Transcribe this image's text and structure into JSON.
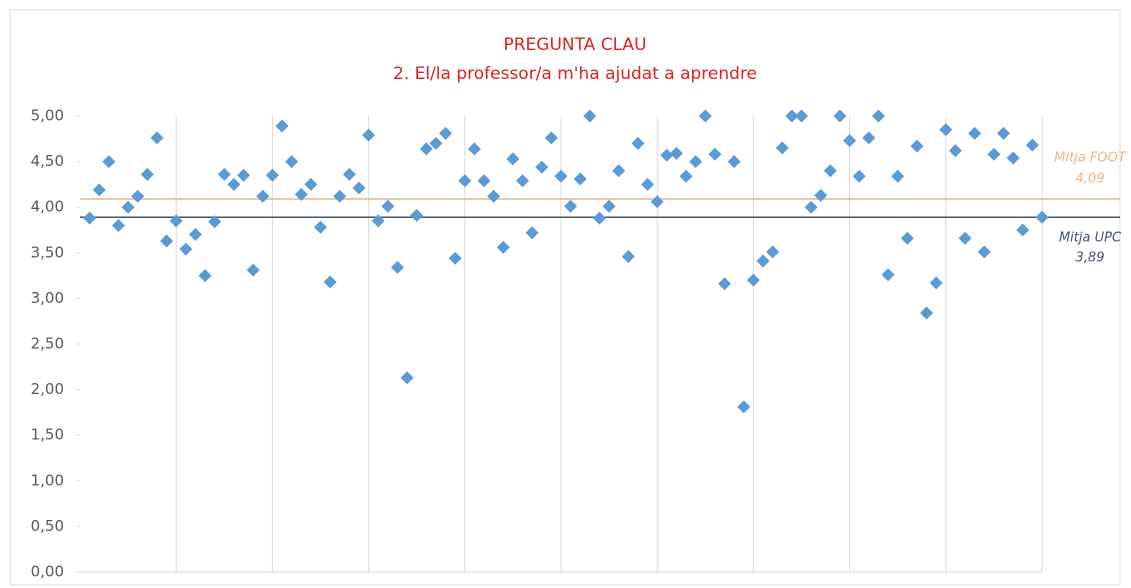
{
  "chart_data": {
    "type": "scatter",
    "title": "PREGUNTA CLAU",
    "subtitle": "2. El/la professor/a m'ha ajudat a aprendre",
    "color": "#5b9bd5",
    "marker": "diamond",
    "grid": true,
    "values": [
      3.88,
      4.19,
      4.5,
      3.8,
      4.0,
      4.12,
      4.36,
      4.76,
      3.63,
      3.85,
      3.54,
      3.7,
      3.25,
      3.84,
      4.36,
      4.25,
      4.35,
      3.31,
      4.12,
      4.35,
      4.89,
      4.5,
      4.14,
      4.25,
      3.78,
      3.18,
      4.12,
      4.36,
      4.21,
      4.79,
      3.85,
      4.01,
      3.34,
      2.13,
      3.91,
      4.64,
      4.7,
      4.81,
      3.44,
      4.29,
      4.64,
      4.29,
      4.12,
      3.56,
      4.53,
      4.29,
      3.72,
      4.44,
      4.76,
      4.34,
      4.01,
      4.31,
      5.0,
      3.88,
      4.01,
      4.4,
      3.46,
      4.7,
      4.25,
      4.06,
      4.57,
      4.59,
      4.34,
      4.5,
      5.0,
      4.58,
      3.16,
      4.5,
      1.81,
      3.2,
      3.41,
      3.51,
      4.65,
      5.0,
      5.0,
      4.0,
      4.13,
      4.4,
      5.0,
      4.73,
      4.34,
      4.76,
      5.0,
      3.26,
      4.34,
      3.66,
      4.67,
      2.84,
      3.17,
      4.85,
      4.62,
      3.66,
      4.81,
      3.51,
      4.58,
      4.81,
      4.54,
      3.75,
      4.68,
      3.89
    ],
    "ylim": [
      0,
      5
    ],
    "yticks": [
      {
        "value": 0,
        "label": "0,00"
      },
      {
        "value": 0.5,
        "label": "0,50"
      },
      {
        "value": 1,
        "label": "1,00"
      },
      {
        "value": 1.5,
        "label": "1,50"
      },
      {
        "value": 2,
        "label": "2,00"
      },
      {
        "value": 2.5,
        "label": "2,50"
      },
      {
        "value": 3,
        "label": "3,00"
      },
      {
        "value": 3.5,
        "label": "3,50"
      },
      {
        "value": 4,
        "label": "4,00"
      },
      {
        "value": 4.5,
        "label": "4,50"
      },
      {
        "value": 5,
        "label": "5,00"
      }
    ],
    "reference_lines": [
      {
        "name": "Mitja FOOT",
        "value": 4.09,
        "value_label": "4,09",
        "color": "#f4b183"
      },
      {
        "name": "Mitja UPC",
        "value": 3.89,
        "value_label": "3,89",
        "color": "#44546a"
      }
    ]
  }
}
